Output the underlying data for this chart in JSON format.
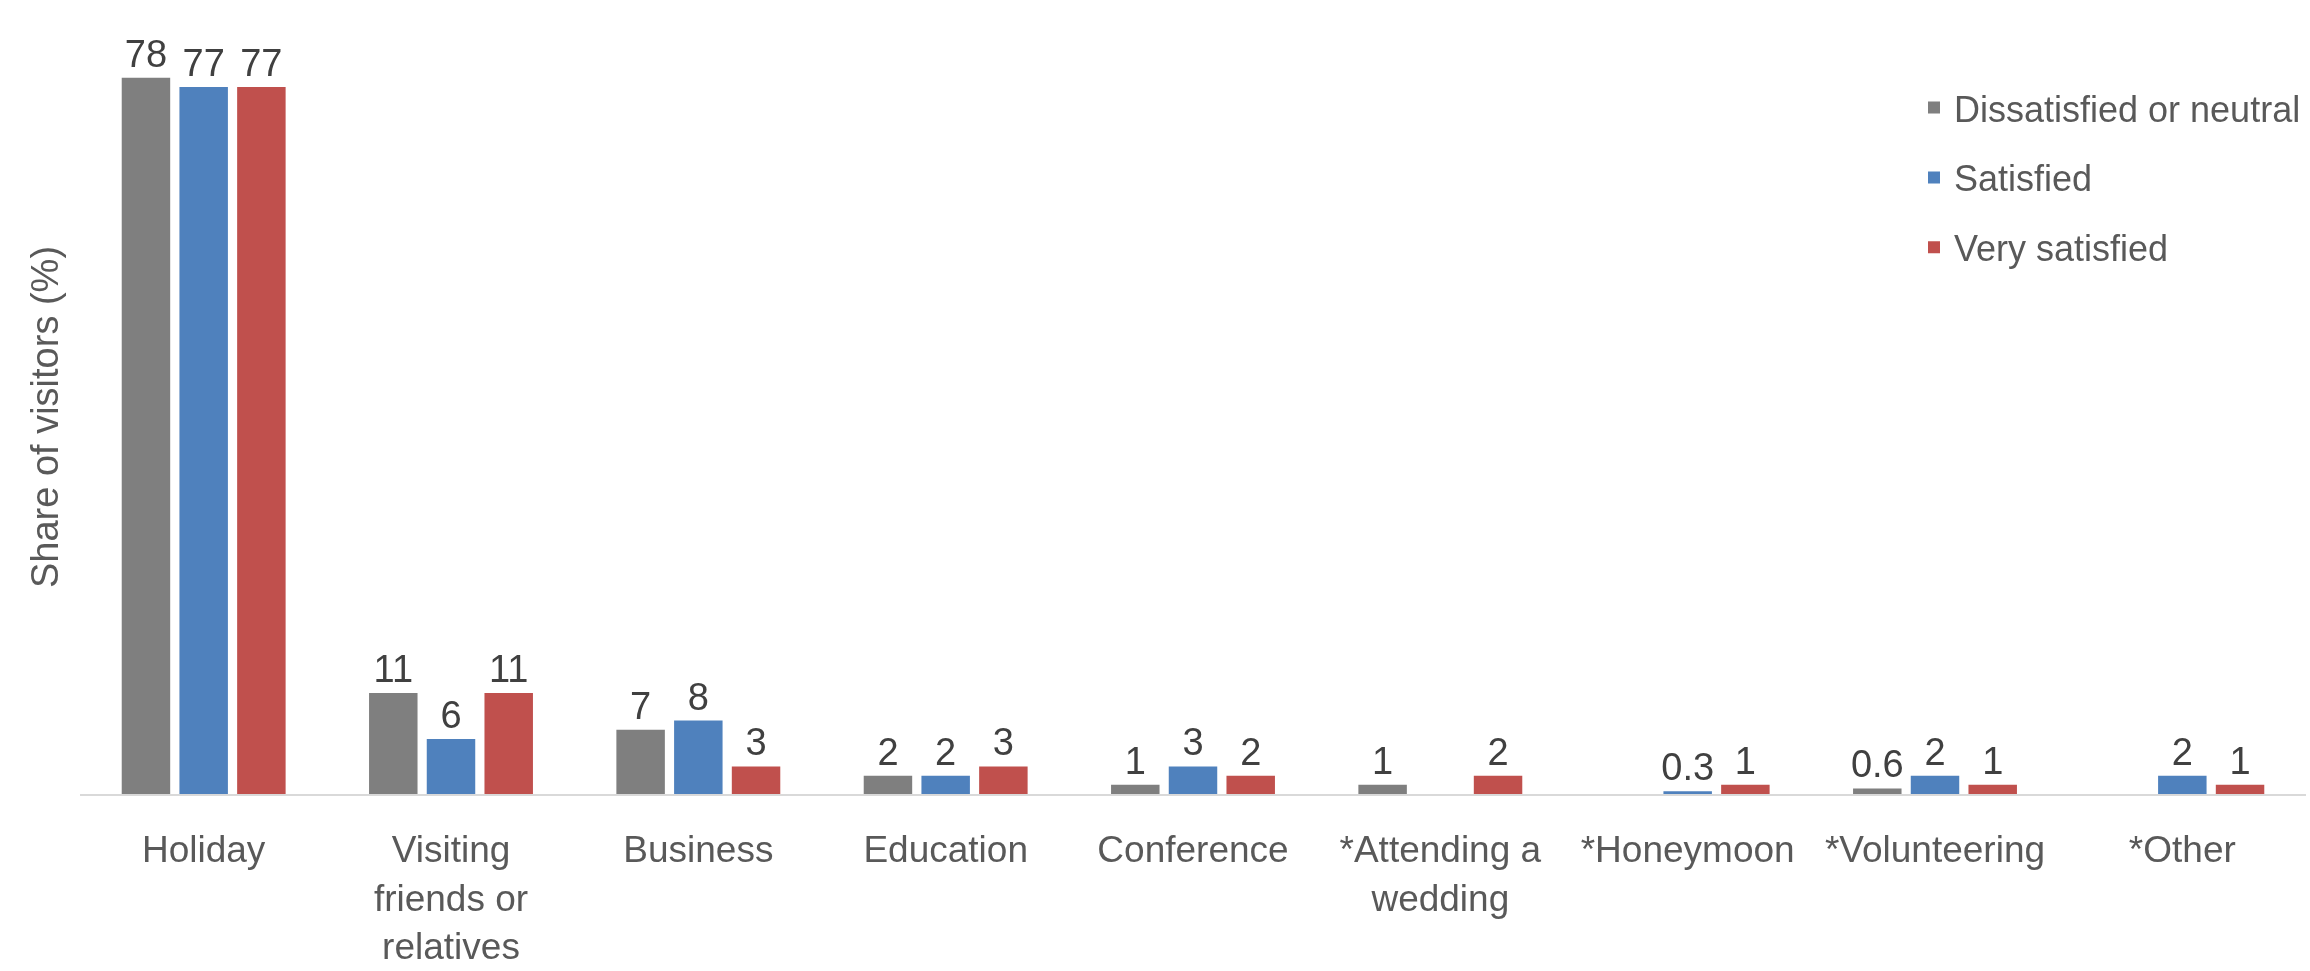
{
  "chart_data": {
    "type": "bar",
    "ylabel": "Share of visitors (%)",
    "categories": [
      "Holiday",
      "Visiting friends or relatives",
      "Business",
      "Education",
      "Conference",
      "*Attending a wedding",
      "*Honeymoon",
      "*Volunteering",
      "*Other"
    ],
    "series": [
      {
        "name": "Dissatisfied or neutral",
        "color": "#7f7f7f",
        "values": [
          78,
          11,
          7,
          2,
          1,
          1,
          null,
          0.6,
          null
        ]
      },
      {
        "name": "Satisfied",
        "color": "#4f81bd",
        "values": [
          77,
          6,
          8,
          2,
          3,
          null,
          0.3,
          2,
          2
        ]
      },
      {
        "name": "Very satisfied",
        "color": "#c0504d",
        "values": [
          77,
          11,
          3,
          3,
          2,
          2,
          1,
          1,
          1
        ]
      }
    ],
    "tick_labels": "x",
    "data_labels": true,
    "legend": "top right"
  }
}
